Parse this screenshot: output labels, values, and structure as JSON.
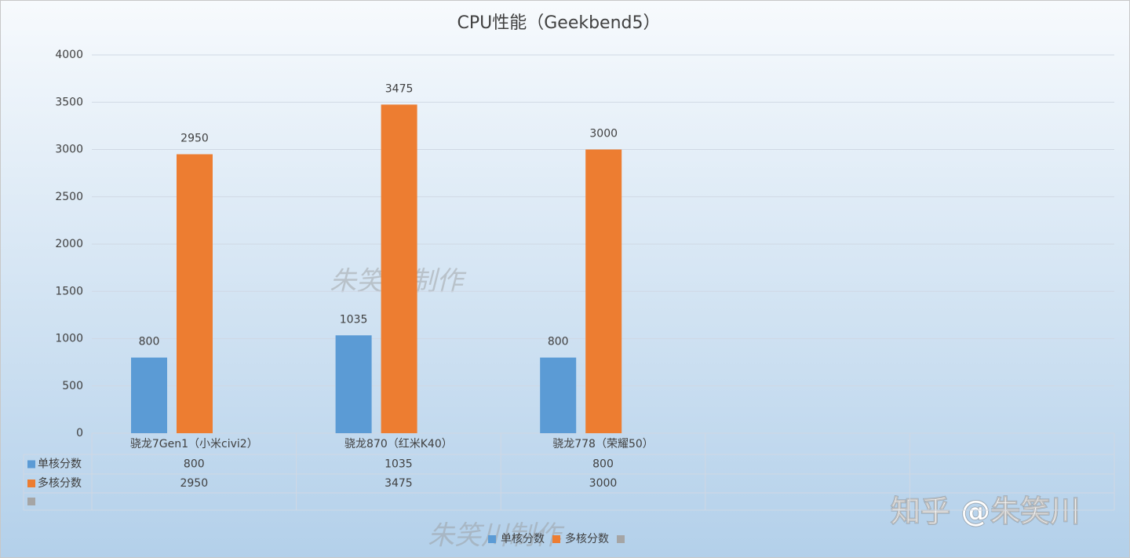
{
  "chart_data": {
    "type": "bar",
    "title": "CPU性能（Geekbend5）",
    "categories": [
      "骁龙7Gen1（小米civi2）",
      "骁龙870（红米K40）",
      "骁龙778（荣耀50）",
      null,
      null
    ],
    "series": [
      {
        "name": "单核分数",
        "color": "#5b9bd5",
        "values": [
          800,
          1035,
          800,
          null,
          null
        ]
      },
      {
        "name": "多核分数",
        "color": "#ed7d31",
        "values": [
          2950,
          3475,
          3000,
          null,
          null
        ]
      },
      {
        "color": "#a5a5a5",
        "values": [
          null,
          null,
          null,
          null,
          null
        ]
      }
    ],
    "ylim": [
      0,
      4000
    ],
    "yticks": [
      0,
      500,
      1000,
      1500,
      2000,
      2500,
      3000,
      3500,
      4000
    ],
    "grid": true,
    "annotations": [
      "朱笑川制作",
      "朱笑川制作",
      "知乎 @朱笑川"
    ]
  }
}
